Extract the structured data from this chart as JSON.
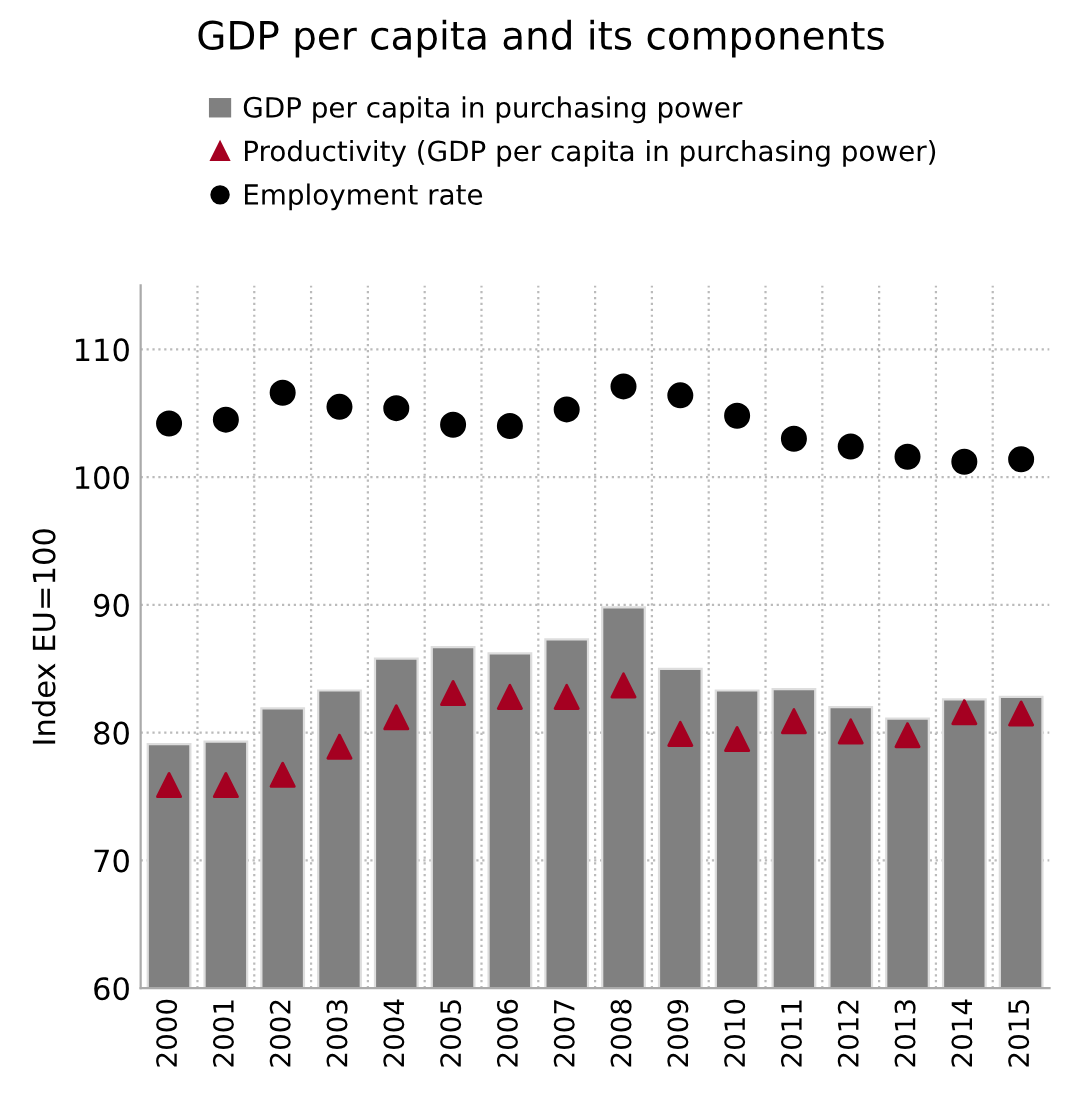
{
  "chart_data": {
    "type": "bar",
    "title": "GDP per capita and its components",
    "ylabel": "Index EU=100",
    "categories": [
      "2000",
      "2001",
      "2002",
      "2003",
      "2004",
      "2005",
      "2006",
      "2007",
      "2008",
      "2009",
      "2010",
      "2011",
      "2012",
      "2013",
      "2014",
      "2015"
    ],
    "series": [
      {
        "name": "GDP per capita in purchasing power",
        "color": "#808080",
        "values": [
          79.1,
          79.3,
          81.9,
          83.3,
          85.8,
          86.7,
          86.2,
          87.3,
          89.8,
          85.0,
          83.3,
          83.4,
          82.0,
          81.1,
          82.6,
          82.8
        ]
      },
      {
        "name": "Productivity (GDP per capita in purchasing power)",
        "type": "scatter",
        "marker": "triangle",
        "color": "#a50021",
        "values": [
          75.9,
          75.9,
          76.7,
          78.9,
          81.2,
          83.1,
          82.8,
          82.8,
          83.7,
          79.9,
          79.5,
          80.9,
          80.1,
          79.8,
          81.6,
          81.5
        ]
      },
      {
        "name": "Employment rate",
        "type": "scatter",
        "marker": "circle",
        "color": "#000000",
        "values": [
          104.2,
          104.5,
          106.6,
          105.5,
          105.4,
          104.1,
          104.0,
          105.3,
          107.1,
          106.4,
          104.8,
          103.0,
          102.4,
          101.6,
          101.2,
          101.4
        ]
      }
    ],
    "ylim": [
      60,
      115
    ],
    "yticks": [
      60,
      70,
      80,
      90,
      100,
      110
    ],
    "grid": true,
    "legend": "top left"
  }
}
